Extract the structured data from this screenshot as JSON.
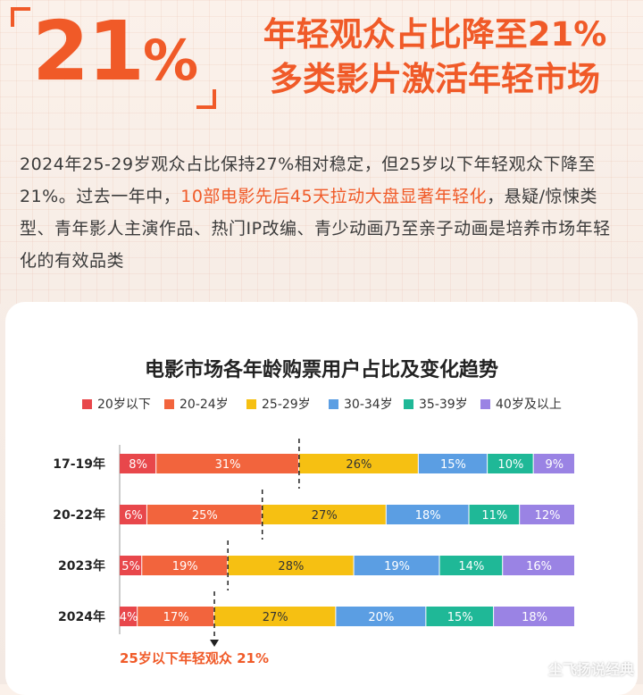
{
  "hero": {
    "big_number": "21",
    "big_unit": "%",
    "headline_line1": "年轻观众占比降至21%",
    "headline_line2": "多类影片激活年轻市场"
  },
  "paragraph": {
    "part1": "2024年25-29岁观众占比保持27%相对稳定，但25岁以下年轻观众下降至21%。过去一年中，",
    "highlight": "10部电影先后45天拉动大盘显著年轻化",
    "part2": "，悬疑/惊悚类型、青年影人主演作品、热门IP改编、青少动画乃至亲子动画是培养市场年轻化的有效品类"
  },
  "footnote": "25岁以下年轻观众 21%",
  "watermark": "尘飞扬说经典",
  "chart_data": {
    "type": "bar",
    "orientation": "horizontal",
    "stacked": true,
    "title": "电影市场各年龄购票用户占比及变化趋势",
    "categories": [
      "17-19年",
      "20-22年",
      "2023年",
      "2024年"
    ],
    "series": [
      {
        "name": "20岁以下",
        "color": "#e8474b",
        "values": [
          8,
          6,
          5,
          4
        ]
      },
      {
        "name": "20-24岁",
        "color": "#f2643d",
        "values": [
          31,
          25,
          19,
          17
        ]
      },
      {
        "name": "25-29岁",
        "color": "#f6c012",
        "values": [
          26,
          27,
          28,
          27
        ]
      },
      {
        "name": "30-34岁",
        "color": "#5b9ee3",
        "values": [
          15,
          18,
          19,
          20
        ]
      },
      {
        "name": "35-39岁",
        "color": "#1fb897",
        "values": [
          10,
          11,
          14,
          15
        ]
      },
      {
        "name": "40岁及以上",
        "color": "#9a83e4",
        "values": [
          9,
          12,
          16,
          18
        ]
      }
    ],
    "value_labels": [
      [
        "8%",
        "31%",
        "26%",
        "15%",
        "10%",
        "9%"
      ],
      [
        "6%",
        "25%",
        "27%",
        "18%",
        "11%",
        "12%"
      ],
      [
        "5%",
        "19%",
        "28%",
        "19%",
        "14%",
        "16%"
      ],
      [
        "4%",
        "17%",
        "27%",
        "20%",
        "15%",
        "18%"
      ]
    ],
    "under_25_marker": true,
    "legend_position": "top",
    "grid": false
  }
}
